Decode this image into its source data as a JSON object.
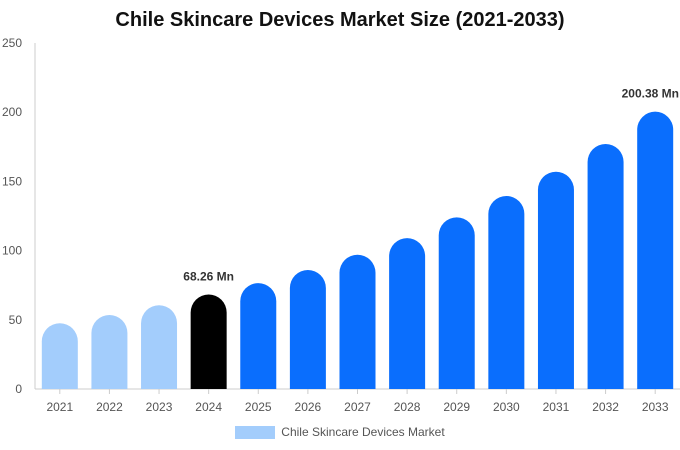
{
  "chart_data": {
    "type": "bar",
    "title": "Chile Skincare Devices Market Size (2021-2033)",
    "xlabel": "",
    "ylabel": "",
    "categories": [
      "2021",
      "2022",
      "2023",
      "2024",
      "2025",
      "2026",
      "2027",
      "2028",
      "2029",
      "2030",
      "2031",
      "2032",
      "2033"
    ],
    "series": [
      {
        "name": "Chile Skincare Devices Market",
        "values": [
          47.5,
          53.5,
          60.5,
          68.26,
          76.5,
          86,
          97,
          109,
          124,
          139.5,
          157,
          177,
          200.38
        ]
      }
    ],
    "ylim": [
      0,
      250
    ],
    "yticks": [
      0,
      50,
      100,
      150,
      200,
      250
    ],
    "grid": false,
    "legend_position": "bottom",
    "data_labels": [
      {
        "category": "2024",
        "text": "68.26 Mn"
      },
      {
        "category": "2033",
        "text": "200.38 Mn"
      }
    ],
    "colors": {
      "historical": "#a3cdfc",
      "base_year": "#000000",
      "forecast": "#0a6efd",
      "axis": "#cccccc",
      "tick_text": "#555555",
      "label_text": "#333333"
    },
    "bar_color_groups": [
      "historical",
      "historical",
      "historical",
      "base_year",
      "forecast",
      "forecast",
      "forecast",
      "forecast",
      "forecast",
      "forecast",
      "forecast",
      "forecast",
      "forecast"
    ]
  },
  "legend": {
    "label": "Chile Skincare Devices Market",
    "color": "#a3cdfc"
  }
}
